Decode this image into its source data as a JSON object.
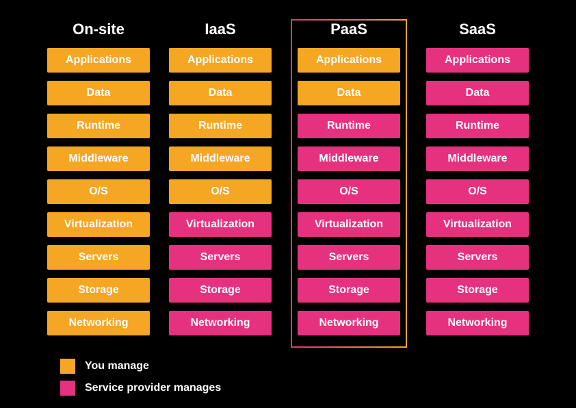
{
  "diagram": {
    "type": "infographic",
    "background_color": "#000000",
    "text_color": "#ffffff",
    "title_fontsize": 22,
    "layer_fontsize": 16,
    "layer_fontweight": 700,
    "colors": {
      "you_manage": "#f5a623",
      "provider_manages": "#e6317f"
    },
    "layers": [
      "Applications",
      "Data",
      "Runtime",
      "Middleware",
      "O/S",
      "Virtualization",
      "Servers",
      "Storage",
      "Networking"
    ],
    "columns": [
      {
        "title": "On-site",
        "highlighted": false,
        "ownership": [
          "you",
          "you",
          "you",
          "you",
          "you",
          "you",
          "you",
          "you",
          "you"
        ]
      },
      {
        "title": "IaaS",
        "highlighted": false,
        "ownership": [
          "you",
          "you",
          "you",
          "you",
          "you",
          "provider",
          "provider",
          "provider",
          "provider"
        ]
      },
      {
        "title": "PaaS",
        "highlighted": true,
        "highlight_border_gradient": [
          "#e6317f",
          "#f5a623"
        ],
        "ownership": [
          "you",
          "you",
          "provider",
          "provider",
          "provider",
          "provider",
          "provider",
          "provider",
          "provider"
        ]
      },
      {
        "title": "SaaS",
        "highlighted": false,
        "ownership": [
          "provider",
          "provider",
          "provider",
          "provider",
          "provider",
          "provider",
          "provider",
          "provider",
          "provider"
        ]
      }
    ],
    "legend": [
      {
        "swatch": "#f5a623",
        "label": "You manage"
      },
      {
        "swatch": "#e6317f",
        "label": "Service provider manages"
      }
    ]
  }
}
